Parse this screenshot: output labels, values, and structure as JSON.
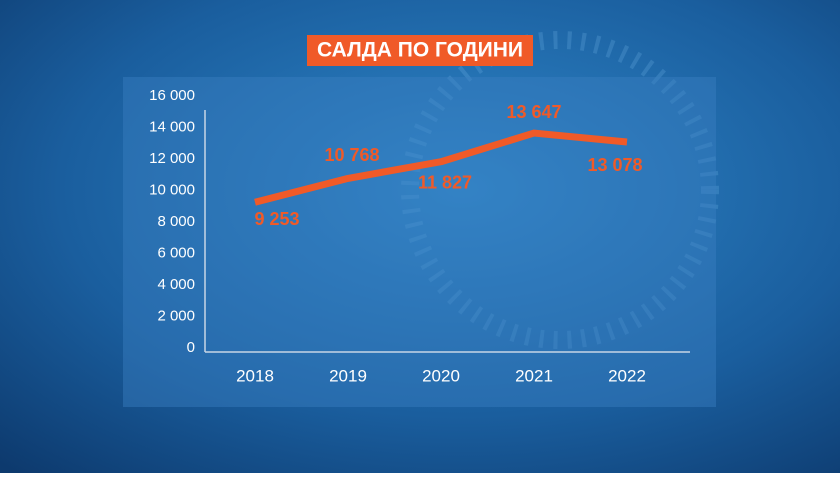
{
  "chart_data": {
    "type": "line",
    "title": "САЛДА ПО ГОДИНИ",
    "categories": [
      "2018",
      "2019",
      "2020",
      "2021",
      "2022"
    ],
    "series": [
      {
        "name": "Салда",
        "color": "#f05a28",
        "values": [
          9253,
          10768,
          11827,
          13647,
          13078
        ],
        "value_labels": [
          "9 253",
          "10 768",
          "11 827",
          "13 647",
          "13 078"
        ]
      }
    ],
    "ylim": [
      0,
      16000
    ],
    "yticks": [
      0,
      {
        "value": 2000,
        "label": "2 000"
      },
      {
        "value": 4000,
        "label": "4 000"
      },
      {
        "value": 6000,
        "label": "6 000"
      },
      {
        "value": 8000,
        "label": "8 000"
      },
      {
        "value": 10000,
        "label": "10 000"
      },
      {
        "value": 12000,
        "label": "12 000"
      },
      {
        "value": 14000,
        "label": "14 000"
      },
      {
        "value": 16000,
        "label": "16 000"
      }
    ],
    "grid": false
  }
}
